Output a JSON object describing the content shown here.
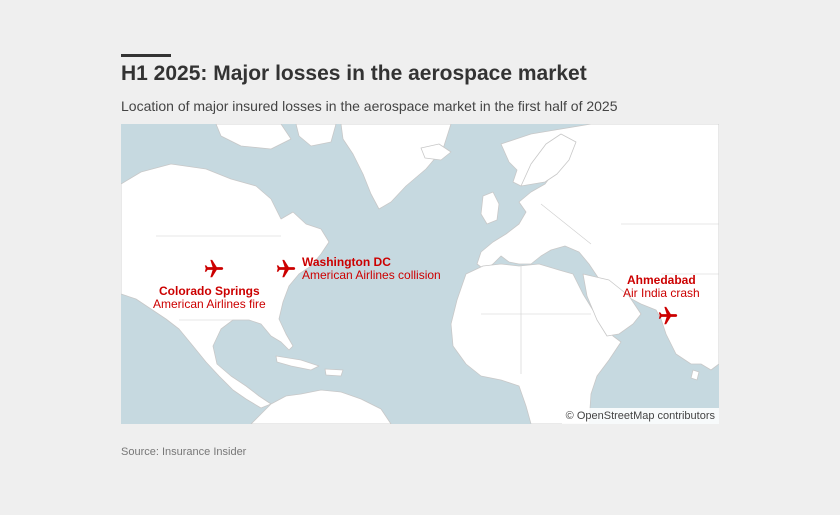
{
  "header": {
    "title": "H1 2025: Major losses in the aerospace market",
    "subtitle": "Location of major insured losses in the aerospace market in the first half of 2025"
  },
  "map": {
    "attribution": "© OpenStreetMap contributors",
    "colors": {
      "water": "#c6d9e0",
      "land": "#ffffff",
      "border": "#c8c8c8",
      "marker": "#cc0000"
    },
    "marker_icon": "airplane-icon"
  },
  "losses": [
    {
      "city": "Colorado Springs",
      "event": "American Airlines fire"
    },
    {
      "city": "Washington DC",
      "event": "American Airlines collision"
    },
    {
      "city": "Ahmedabad",
      "event": "Air India crash"
    }
  ],
  "footer": {
    "source": "Source: Insurance Insider"
  }
}
